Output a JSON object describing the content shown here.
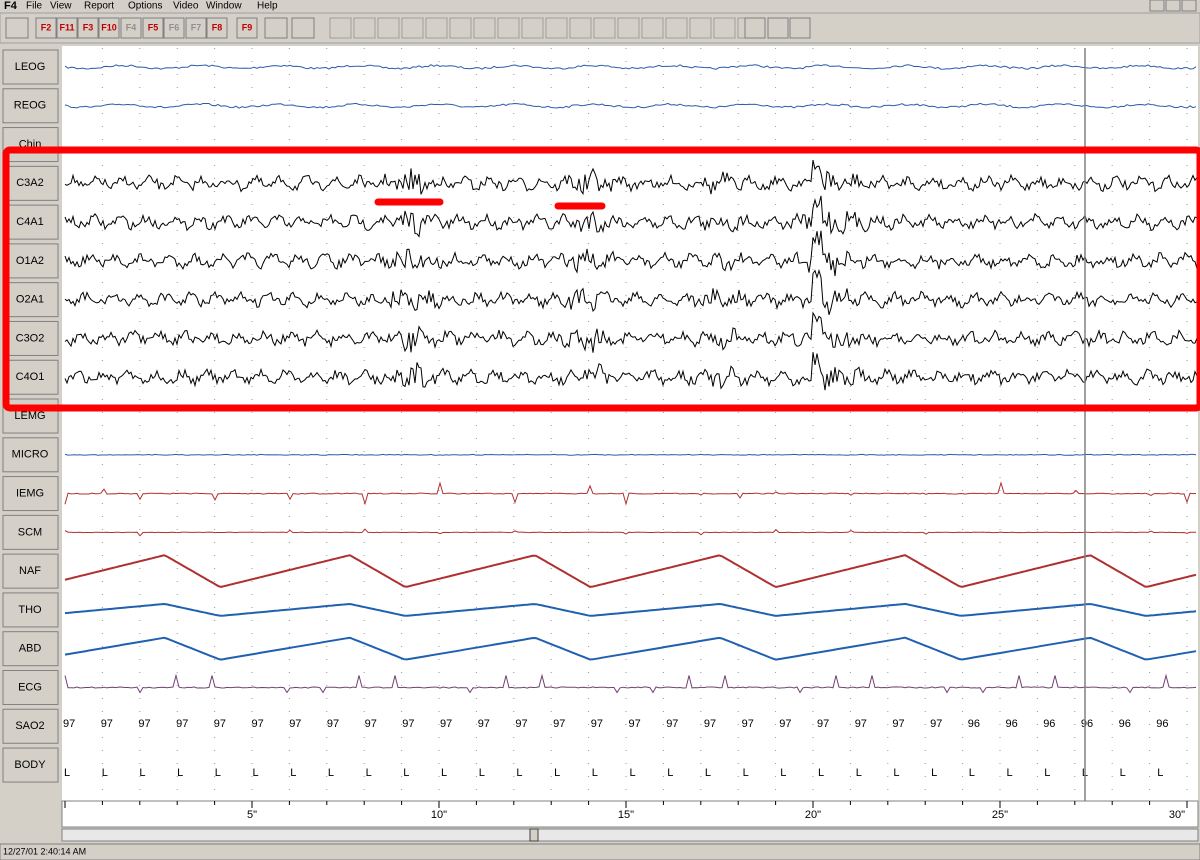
{
  "menu": {
    "app": "F4",
    "items": [
      "File",
      "View",
      "Report",
      "Options",
      "Video",
      "Window",
      "Help"
    ]
  },
  "toolbar": {
    "keys": [
      {
        "label": "F2",
        "active": true
      },
      {
        "label": "F11",
        "active": true
      },
      {
        "label": "F3",
        "active": true
      },
      {
        "label": "F10",
        "active": true
      },
      {
        "label": "F4",
        "active": false
      },
      {
        "label": "F5",
        "active": true
      },
      {
        "label": "F6",
        "active": false
      },
      {
        "label": "F7",
        "active": false
      },
      {
        "label": "F8",
        "active": true
      },
      {
        "label": "F9",
        "active": true
      }
    ]
  },
  "channels": [
    "LEOG",
    "REOG",
    "Chin",
    "C3A2",
    "C4A1",
    "O1A2",
    "O2A1",
    "C3O2",
    "C4O1",
    "LEMG",
    "MICRO",
    "IEMG",
    "SCM",
    "NAF",
    "THO",
    "ABD",
    "ECG",
    "SAO2",
    "BODY"
  ],
  "sao2": [
    97,
    97,
    97,
    97,
    97,
    97,
    97,
    97,
    97,
    97,
    97,
    97,
    97,
    97,
    97,
    97,
    97,
    97,
    97,
    97,
    97,
    97,
    97,
    97,
    96,
    96,
    96,
    96,
    96,
    96
  ],
  "body": [
    "L",
    "L",
    "L",
    "L",
    "L",
    "L",
    "L",
    "L",
    "L",
    "L",
    "L",
    "L",
    "L",
    "L",
    "L",
    "L",
    "L",
    "L",
    "L",
    "L",
    "L",
    "L",
    "L",
    "L",
    "L",
    "L",
    "L",
    "L",
    "L",
    "L"
  ],
  "time_axis": [
    "5\"",
    "10\"",
    "15\"",
    "20\"",
    "25\"",
    "30\""
  ],
  "status": "12/27/01 2:40:14 AM"
}
